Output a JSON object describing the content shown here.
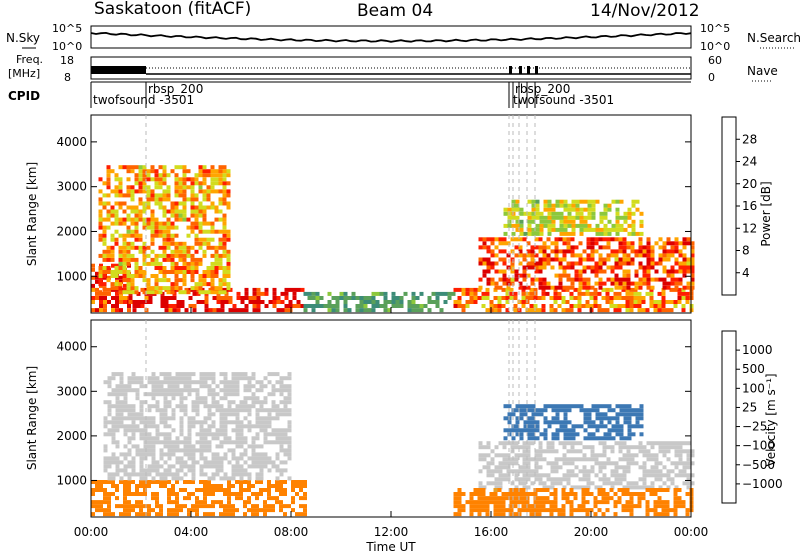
{
  "header": {
    "station": "Saskatoon (fitACF)",
    "beam": "Beam 04",
    "date": "14/Nov/2012"
  },
  "nsky_panel": {
    "left_label": "N.Sky",
    "right_label": "N.Search",
    "left_ticks": [
      "10^5",
      "10^0"
    ],
    "right_ticks": [
      "10^5",
      "10^0"
    ]
  },
  "freq_panel": {
    "left_label_1": "Freq.",
    "left_label_2": "[MHz]",
    "left_ticks": [
      "18",
      "8"
    ],
    "right_label": "Nave",
    "right_ticks": [
      "60",
      "0"
    ]
  },
  "cpid_panel": {
    "label": "CPID",
    "entries": [
      "rbsp_200",
      "twofsound -3501",
      "rbsp_200",
      "twofsound -3501"
    ]
  },
  "x_axis": {
    "label": "Time UT",
    "ticks": [
      "00:00",
      "04:00",
      "08:00",
      "12:00",
      "16:00",
      "20:00",
      "00:00"
    ]
  },
  "power_panel": {
    "ylabel": "Slant Range [km]",
    "yticks": [
      "1000",
      "2000",
      "3000",
      "4000"
    ],
    "colorbar_label": "Power [dB]",
    "colorbar_ticks": [
      "28",
      "24",
      "20",
      "16",
      "12",
      "8",
      "4"
    ],
    "colors": [
      "#0000ff",
      "#2a52c8",
      "#3c8c78",
      "#5aa05a",
      "#8cc83c",
      "#d2dc1e",
      "#ffa500",
      "#ff6400",
      "#ff1e00",
      "#dc0000"
    ]
  },
  "velocity_panel": {
    "ylabel": "Slant Range [km]",
    "yticks": [
      "1000",
      "2000",
      "3000",
      "4000"
    ],
    "colorbar_label": "Velocity [m s⁻¹]",
    "colorbar_ticks": [
      "1000",
      "500",
      "100",
      "25",
      "−25",
      "−100",
      "−500",
      "−1000"
    ],
    "colors": [
      "#1e32b4",
      "#3c78b4",
      "#3ca064",
      "#96d264",
      "#c8c8c8",
      "#e6a028",
      "#ff8200",
      "#ff5000",
      "#ff0000"
    ]
  },
  "chart_data": [
    {
      "type": "heatmap",
      "title": "Power",
      "xlabel": "Time UT",
      "ylabel": "Slant Range [km]",
      "xlim": [
        0,
        24
      ],
      "ylim": [
        180,
        4600
      ],
      "colorbar": {
        "label": "Power [dB]",
        "range": [
          0,
          30
        ]
      },
      "regions": [
        {
          "t0": 0.0,
          "t1": 1.5,
          "r0": 200,
          "r1": 1200,
          "dB": 26
        },
        {
          "t0": 1.5,
          "t1": 8.5,
          "r0": 200,
          "r1": 700,
          "dB": 28
        },
        {
          "t0": 0.3,
          "t1": 5.5,
          "r0": 600,
          "r1": 3400,
          "dB": 20
        },
        {
          "t0": 8.5,
          "t1": 14.5,
          "r0": 200,
          "r1": 600,
          "dB": 10
        },
        {
          "t0": 14.5,
          "t1": 24.0,
          "r0": 200,
          "r1": 700,
          "dB": 22
        },
        {
          "t0": 15.5,
          "t1": 24.0,
          "r0": 700,
          "r1": 1800,
          "dB": 24
        },
        {
          "t0": 16.5,
          "t1": 22.0,
          "r0": 1900,
          "r1": 2700,
          "dB": 16
        }
      ]
    },
    {
      "type": "heatmap",
      "title": "Velocity",
      "xlabel": "Time UT",
      "ylabel": "Slant Range [km]",
      "xlim": [
        0,
        24
      ],
      "ylim": [
        180,
        4600
      ],
      "colorbar": {
        "label": "Velocity [m s⁻¹]",
        "range": [
          -1000,
          1000
        ]
      },
      "regions": [
        {
          "t0": 0.0,
          "t1": 8.5,
          "r0": 200,
          "r1": 1000,
          "v": -100
        },
        {
          "t0": 0.5,
          "t1": 8.0,
          "r0": 1000,
          "r1": 3400,
          "v": 0
        },
        {
          "t0": 15.5,
          "t1": 24.0,
          "r0": 800,
          "r1": 1800,
          "v": 0
        },
        {
          "t0": 16.5,
          "t1": 22.0,
          "r0": 1900,
          "r1": 2700,
          "v": 500
        },
        {
          "t0": 14.5,
          "t1": 24.0,
          "r0": 200,
          "r1": 800,
          "v": -80
        }
      ]
    }
  ]
}
